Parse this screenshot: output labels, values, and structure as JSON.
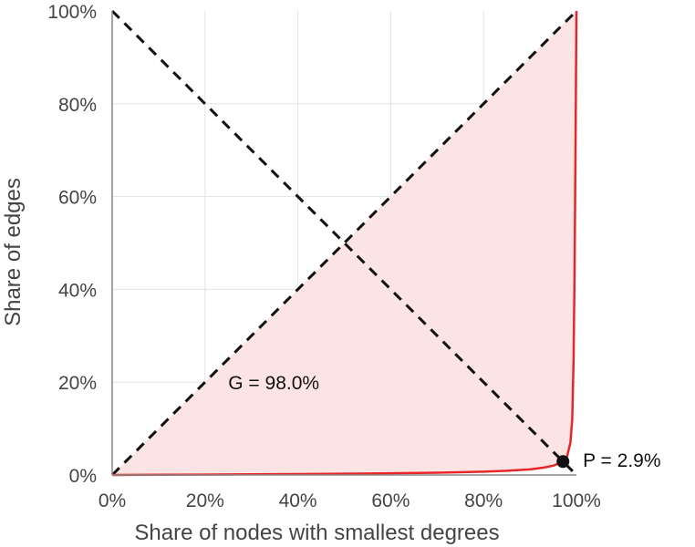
{
  "chart_data": {
    "type": "line",
    "xlabel": "Share of nodes with smallest degrees",
    "ylabel": "Share of edges",
    "xlim": [
      0,
      100
    ],
    "ylim": [
      0,
      100
    ],
    "x_ticks": [
      "0%",
      "20%",
      "40%",
      "60%",
      "80%",
      "100%"
    ],
    "y_ticks": [
      "0%",
      "20%",
      "40%",
      "60%",
      "80%",
      "100%"
    ],
    "grid": true,
    "series": [
      {
        "kind": "lorenz-curve",
        "color": "#e8262a",
        "fill": "#fde4e4",
        "points": [
          [
            0,
            0
          ],
          [
            10,
            0.03
          ],
          [
            20,
            0.08
          ],
          [
            30,
            0.14
          ],
          [
            40,
            0.2
          ],
          [
            50,
            0.28
          ],
          [
            60,
            0.38
          ],
          [
            70,
            0.5
          ],
          [
            80,
            0.7
          ],
          [
            85,
            0.9
          ],
          [
            90,
            1.2
          ],
          [
            93,
            1.6
          ],
          [
            95,
            2.0
          ],
          [
            96.5,
            2.6
          ],
          [
            97.1,
            2.9
          ],
          [
            98,
            4
          ],
          [
            98.7,
            7
          ],
          [
            99.1,
            12
          ],
          [
            99.4,
            25
          ],
          [
            99.6,
            45
          ],
          [
            99.8,
            70
          ],
          [
            100,
            100
          ]
        ]
      }
    ],
    "reference_lines": [
      {
        "kind": "equality-diagonal",
        "from": [
          0,
          0
        ],
        "to": [
          100,
          100
        ],
        "style": "dashed",
        "color": "#111111"
      },
      {
        "kind": "anti-diagonal",
        "from": [
          0,
          100
        ],
        "to": [
          100,
          0
        ],
        "style": "dashed",
        "color": "#111111"
      }
    ],
    "marker": {
      "x": 97.1,
      "y": 2.9,
      "color": "#111111"
    },
    "annotations": [
      {
        "id": "gini",
        "text": "G = 98.0%",
        "at": [
          25,
          20
        ]
      },
      {
        "id": "p",
        "text": "P = 2.9%",
        "at": [
          101,
          2.9
        ]
      }
    ]
  }
}
